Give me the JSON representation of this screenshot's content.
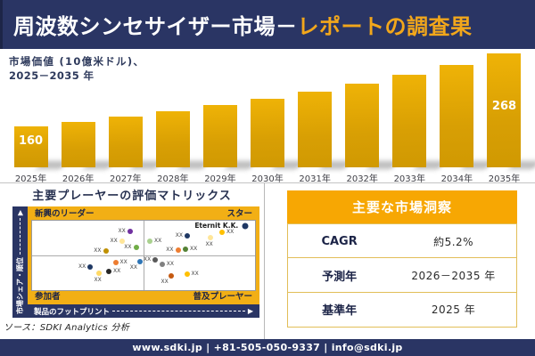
{
  "title_bar": {
    "text_main": "周波数シンセサイザー市場－",
    "text_accent": "レポートの調査果"
  },
  "bar_section": {
    "subtitle_line1": "市場価値 (10億米ドル)、",
    "subtitle_line2": "2025－2035 年"
  },
  "chart_data": [
    {
      "type": "bar",
      "title": "市場価値 (10億米ドル)、2025－2035 年",
      "ylabel": "市場価値 (10億米ドル)",
      "categories": [
        "2025年",
        "2026年",
        "2027年",
        "2028年",
        "2029年",
        "2030年",
        "2031年",
        "2032年",
        "2033年",
        "2034年",
        "2035年"
      ],
      "values": [
        160,
        167,
        175,
        183,
        192,
        201,
        212,
        223,
        236,
        251,
        268
      ],
      "bar_labels": [
        {
          "index": 0,
          "text": "160"
        },
        {
          "index": 10,
          "text": "268"
        }
      ],
      "axis_start": 100,
      "grid": false,
      "legend": false,
      "bar_color_top": "#EFB306",
      "bar_color_bottom": "#D09902"
    },
    {
      "type": "scatter",
      "title": "主要プレーヤーの評価マトリックス",
      "x_axis": "製品のフットプリント",
      "y_axis": "市場シェア・順位",
      "quadrants": {
        "top_left": "新興のリーダー",
        "top_right": "スター",
        "bottom_left": "参加者",
        "bottom_right": "普及プレーヤー"
      },
      "highlighted_company": "Eternit K.K.",
      "points": [
        {
          "x": 43.9,
          "y": 15.9,
          "color": "#7030A0",
          "label": "XX",
          "lp": "l"
        },
        {
          "x": 40.3,
          "y": 29.9,
          "color": "#FFE699",
          "label": "XX",
          "lp": "l"
        },
        {
          "x": 33.0,
          "y": 43.9,
          "color": "#BF9000",
          "label": "XX",
          "lp": "l"
        },
        {
          "x": 46.6,
          "y": 39.0,
          "color": "#70AD47",
          "label": "XX",
          "lp": "l"
        },
        {
          "x": 52.8,
          "y": 29.3,
          "color": "#A9D18E",
          "label": "XX",
          "lp": "r"
        },
        {
          "x": 69.6,
          "y": 22.0,
          "color": "#1F3864",
          "label": "XX",
          "lp": "l"
        },
        {
          "x": 95.7,
          "y": 7.3,
          "color": "#1F3864",
          "label": "Eternit K.K.",
          "lp": "l",
          "named": true
        },
        {
          "x": 79.8,
          "y": 23.8,
          "color": "#FFE699",
          "label": "XX",
          "lp": "b"
        },
        {
          "x": 85.2,
          "y": 17.1,
          "color": "#FFC000",
          "label": "XX",
          "lp": "r"
        },
        {
          "x": 65.4,
          "y": 42.7,
          "color": "#ED7D31",
          "label": "XX",
          "lp": "l"
        },
        {
          "x": 68.8,
          "y": 40.9,
          "color": "#548235",
          "label": "XX",
          "lp": "r"
        },
        {
          "x": 55.3,
          "y": 56.7,
          "color": "#595959",
          "label": "XX",
          "lp": "l"
        },
        {
          "x": 58.3,
          "y": 62.8,
          "color": "#808080",
          "label": "XX",
          "lp": "r"
        },
        {
          "x": 48.4,
          "y": 59.1,
          "color": "#2E75B6",
          "label": "XX",
          "lp": "bl"
        },
        {
          "x": 37.4,
          "y": 60.4,
          "color": "#ED7D31",
          "label": "XX",
          "lp": "r"
        },
        {
          "x": 26.1,
          "y": 66.5,
          "color": "#1F3864",
          "label": "XX",
          "lp": "l"
        },
        {
          "x": 34.4,
          "y": 72.6,
          "color": "#262626",
          "label": "XX",
          "lp": "r"
        },
        {
          "x": 29.8,
          "y": 75.0,
          "color": "#FFD966",
          "label": "XX",
          "lp": "b"
        },
        {
          "x": 62.3,
          "y": 79.9,
          "color": "#C55A11",
          "label": "XX",
          "lp": "bl"
        },
        {
          "x": 69.4,
          "y": 77.4,
          "color": "#FFC000",
          "label": "XX",
          "lp": "r"
        }
      ]
    }
  ],
  "source_note": "ソース：SDKI Analytics 分析",
  "insights": {
    "header": "主要な市場洞察",
    "rows": [
      {
        "label": "CAGR",
        "value": "約5.2%"
      },
      {
        "label": "予測年",
        "value": "2026－2035 年"
      },
      {
        "label": "基準年",
        "value": "2025 年"
      }
    ]
  },
  "footer": "www.sdki.jp | +81-505-050-9337 | info@sdki.jp",
  "colors": {
    "navy": "#2A3564",
    "gold": "#F7A703",
    "accent_title": "#F2A71B",
    "bar_gold": "#DCA408",
    "table_border": "#E2BE58"
  }
}
